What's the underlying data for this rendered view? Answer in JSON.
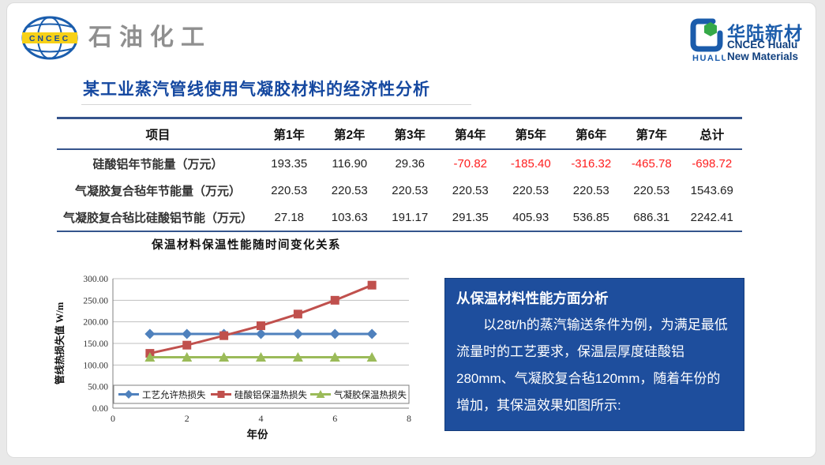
{
  "header": {
    "left_logo": {
      "badge_text": "CNCEC",
      "brand_text": "石油化工"
    },
    "right_logo": {
      "icon_label": "HUALU",
      "brand_cn": "华陆新材",
      "brand_en1": "CNCEC Hualu",
      "brand_en2": "New Materials"
    }
  },
  "title": "某工业蒸汽管线使用气凝胶材料的经济性分析",
  "table": {
    "columns": [
      "项目",
      "第1年",
      "第2年",
      "第3年",
      "第4年",
      "第5年",
      "第6年",
      "第7年",
      "总计"
    ],
    "rows": [
      {
        "label": "硅酸铝年节能量（万元）",
        "values": [
          "193.35",
          "116.90",
          "29.36",
          "-70.82",
          "-185.40",
          "-316.32",
          "-465.78",
          "-698.72"
        ]
      },
      {
        "label": "气凝胶复合毡年节能量（万元）",
        "values": [
          "220.53",
          "220.53",
          "220.53",
          "220.53",
          "220.53",
          "220.53",
          "220.53",
          "1543.69"
        ]
      },
      {
        "label": "气凝胶复合毡比硅酸铝节能（万元）",
        "values": [
          "27.18",
          "103.63",
          "191.17",
          "291.35",
          "405.93",
          "536.85",
          "686.31",
          "2242.41"
        ]
      }
    ],
    "negative_color": "#fe1e1e"
  },
  "chart_data": {
    "type": "line",
    "title": "保温材料保温性能随时间变化关系",
    "xlabel": "年份",
    "ylabel": "管线热损失值 W/m",
    "x": [
      1,
      2,
      3,
      4,
      5,
      6,
      7
    ],
    "xlim": [
      0,
      8
    ],
    "xticks": [
      0,
      2,
      4,
      6,
      8
    ],
    "ylim": [
      0,
      300
    ],
    "ytick_step": 50,
    "ytick_format_decimals": 2,
    "grid": true,
    "legend_position": "bottom-inside",
    "series": [
      {
        "name": "工艺允许热损失",
        "marker": "diamond",
        "color": "#4f81bd",
        "values": [
          172,
          172,
          172,
          172,
          172,
          172,
          172
        ]
      },
      {
        "name": "硅酸铝保温热损失",
        "marker": "square",
        "color": "#c0504d",
        "values": [
          127,
          146,
          168,
          191,
          218,
          250,
          285
        ]
      },
      {
        "name": "气凝胶保温热损失",
        "marker": "triangle",
        "color": "#9bbb59",
        "values": [
          118,
          118,
          118,
          118,
          118,
          118,
          118
        ]
      }
    ]
  },
  "analysis_box": {
    "heading": "从保温材料性能方面分析",
    "body": "以28t/h的蒸汽输送条件为例，为满足最低流量时的工艺要求，保温层厚度硅酸铝280mm、气凝胶复合毡120mm，随着年份的增加，其保温效果如图所示:",
    "bg_color": "#1e4e9d"
  },
  "colors": {
    "title_blue": "#1548a0",
    "table_border": "#35548c",
    "gridline": "#bfbfbf",
    "axis_line": "#808080"
  }
}
